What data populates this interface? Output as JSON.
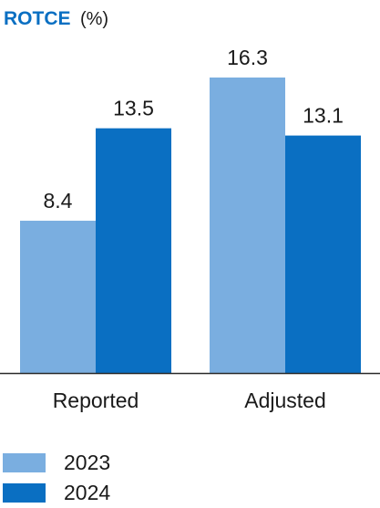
{
  "chart_data": {
    "type": "bar",
    "title": "ROTCE",
    "unit_label": "(%)",
    "categories": [
      "Reported",
      "Adjusted"
    ],
    "series": [
      {
        "name": "2023",
        "values": [
          8.4,
          16.3
        ],
        "color": "#7aaee0"
      },
      {
        "name": "2024",
        "values": [
          13.5,
          13.1
        ],
        "color": "#0a6fc2"
      }
    ],
    "data_labels": [
      [
        "8.4",
        "16.3"
      ],
      [
        "13.5",
        "13.1"
      ]
    ],
    "ylim": [
      0,
      16.3
    ],
    "grid": false,
    "legend_position": "bottom-left",
    "colors": {
      "title": "#0a6fc2",
      "unit": "#1a1a1a",
      "axis": "#2a2a2a",
      "text": "#1a1a1a"
    }
  }
}
